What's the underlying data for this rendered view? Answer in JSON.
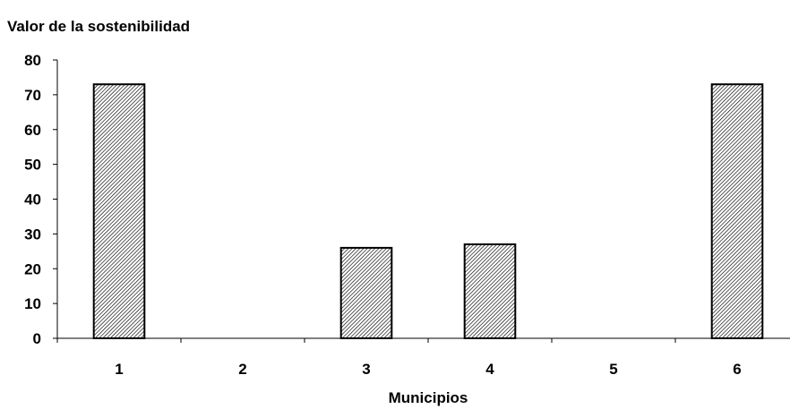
{
  "chart_data": {
    "type": "bar",
    "title": "Valor de la sostenibilidad",
    "xlabel": "Municipios",
    "ylabel": "",
    "categories": [
      "1",
      "2",
      "3",
      "4",
      "5",
      "6"
    ],
    "values": [
      73,
      0,
      26,
      27,
      0,
      73
    ],
    "ylim": [
      0,
      80
    ],
    "yticks": [
      "0",
      "10",
      "20",
      "30",
      "40",
      "50",
      "60",
      "70",
      "80"
    ],
    "grid": false,
    "legend": "none",
    "bar_fill": "hatched",
    "colors": {
      "bar_stroke": "#000000",
      "hatch": "#000000",
      "background": "#ffffff",
      "axis": "#000000"
    }
  }
}
